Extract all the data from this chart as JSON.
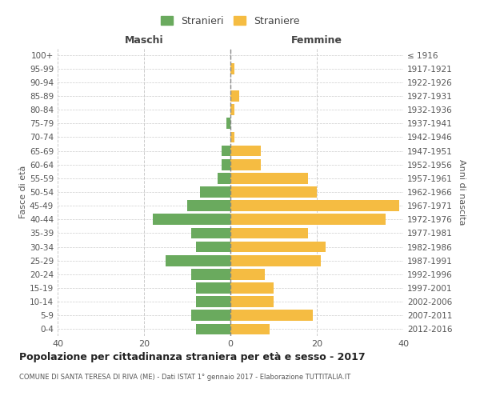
{
  "age_groups": [
    "0-4",
    "5-9",
    "10-14",
    "15-19",
    "20-24",
    "25-29",
    "30-34",
    "35-39",
    "40-44",
    "45-49",
    "50-54",
    "55-59",
    "60-64",
    "65-69",
    "70-74",
    "75-79",
    "80-84",
    "85-89",
    "90-94",
    "95-99",
    "100+"
  ],
  "birth_years": [
    "2012-2016",
    "2007-2011",
    "2002-2006",
    "1997-2001",
    "1992-1996",
    "1987-1991",
    "1982-1986",
    "1977-1981",
    "1972-1976",
    "1967-1971",
    "1962-1966",
    "1957-1961",
    "1952-1956",
    "1947-1951",
    "1942-1946",
    "1937-1941",
    "1932-1936",
    "1927-1931",
    "1922-1926",
    "1917-1921",
    "≤ 1916"
  ],
  "maschi": [
    8,
    9,
    8,
    8,
    9,
    15,
    8,
    9,
    18,
    10,
    7,
    3,
    2,
    2,
    0,
    1,
    0,
    0,
    0,
    0,
    0
  ],
  "femmine": [
    9,
    19,
    10,
    10,
    8,
    21,
    22,
    18,
    36,
    39,
    20,
    18,
    7,
    7,
    1,
    0,
    1,
    2,
    0,
    1,
    0
  ],
  "color_maschi": "#6aaa5e",
  "color_femmine": "#f5bc42",
  "background_color": "#ffffff",
  "grid_color": "#cccccc",
  "title": "Popolazione per cittadinanza straniera per età e sesso - 2017",
  "subtitle": "COMUNE DI SANTA TERESA DI RIVA (ME) - Dati ISTAT 1° gennaio 2017 - Elaborazione TUTTITALIA.IT",
  "xlabel_left": "Maschi",
  "xlabel_right": "Femmine",
  "ylabel_left": "Fasce di età",
  "ylabel_right": "Anni di nascita",
  "legend_maschi": "Stranieri",
  "legend_femmine": "Straniere",
  "xlim": 40,
  "bar_height": 0.8
}
